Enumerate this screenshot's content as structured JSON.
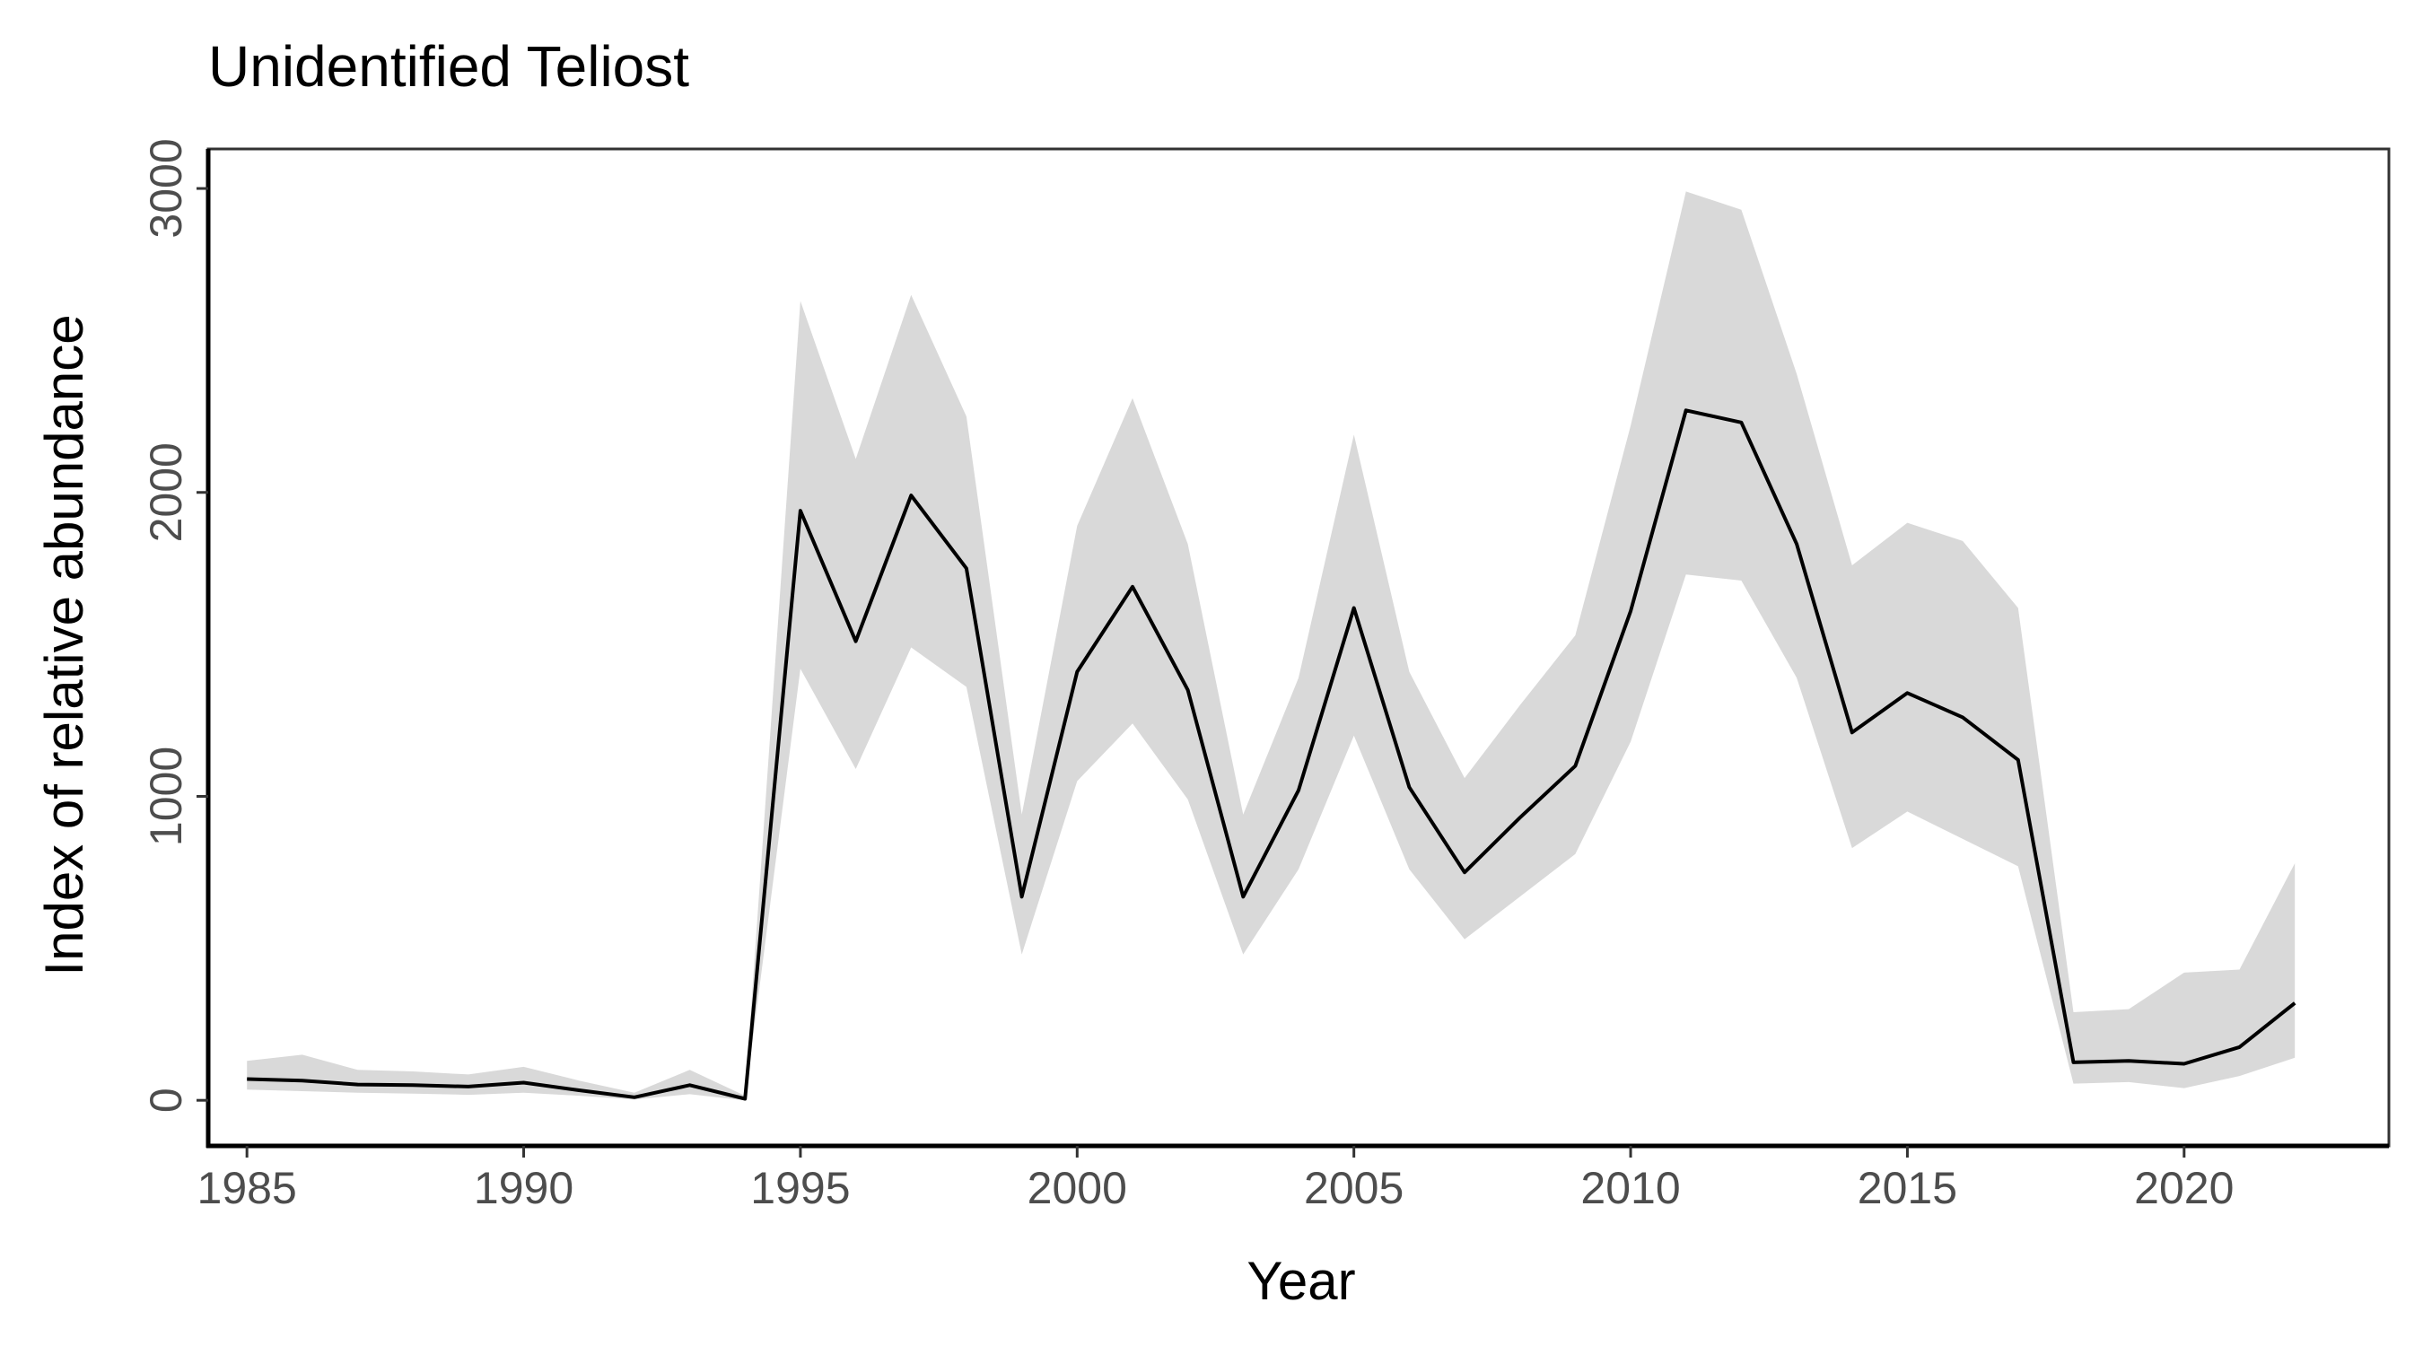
{
  "chart_data": {
    "type": "area",
    "title": "Unidentified Teliost",
    "xlabel": "Year",
    "ylabel": "Index of relative abundance",
    "xlim": [
      1984.3,
      2023.7
    ],
    "ylim": [
      -150,
      3130
    ],
    "x_ticks": [
      1985,
      1990,
      1995,
      2000,
      2005,
      2010,
      2015,
      2020
    ],
    "y_ticks": [
      0,
      1000,
      2000,
      3000
    ],
    "grid": false,
    "legend": "none",
    "colors": {
      "line": "#000000",
      "ribbon": "#d9d9d9",
      "panel_border": "#333333",
      "axis_line": "#000000",
      "tick_text": "#4d4d4d",
      "title_text": "#000000"
    },
    "x": [
      1985,
      1986,
      1987,
      1988,
      1989,
      1990,
      1991,
      1992,
      1993,
      1994,
      1995,
      1996,
      1997,
      1998,
      1999,
      2000,
      2001,
      2002,
      2003,
      2004,
      2005,
      2006,
      2007,
      2008,
      2009,
      2010,
      2011,
      2012,
      2013,
      2014,
      2015,
      2016,
      2017,
      2018,
      2019,
      2020,
      2021,
      2022
    ],
    "series": [
      {
        "type": "line",
        "values": [
          70,
          65,
          52,
          50,
          45,
          58,
          33,
          10,
          50,
          5,
          1940,
          1510,
          1990,
          1750,
          670,
          1410,
          1690,
          1350,
          670,
          1020,
          1620,
          1030,
          750,
          930,
          1100,
          1610,
          2270,
          2230,
          1830,
          1210,
          1340,
          1260,
          1120,
          125,
          130,
          120,
          175,
          320
        ]
      },
      {
        "type": "band",
        "lower": [
          35,
          30,
          25,
          22,
          18,
          25,
          15,
          3,
          20,
          0,
          1420,
          1090,
          1490,
          1360,
          480,
          1050,
          1240,
          990,
          480,
          760,
          1200,
          760,
          530,
          670,
          810,
          1180,
          1730,
          1710,
          1390,
          830,
          950,
          860,
          770,
          55,
          60,
          40,
          80,
          140
        ],
        "upper": [
          130,
          150,
          100,
          95,
          85,
          110,
          65,
          25,
          100,
          15,
          2630,
          2110,
          2650,
          2250,
          940,
          1890,
          2310,
          1830,
          940,
          1390,
          2190,
          1410,
          1060,
          1300,
          1530,
          2220,
          2990,
          2930,
          2390,
          1760,
          1900,
          1840,
          1620,
          290,
          300,
          420,
          430,
          780
        ]
      }
    ]
  }
}
